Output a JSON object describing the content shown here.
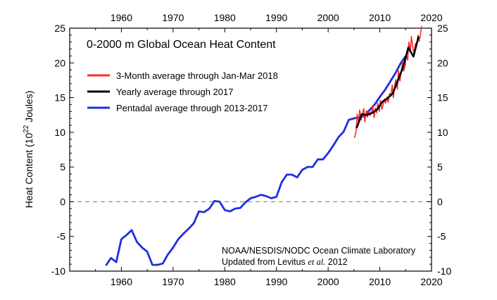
{
  "chart_data": {
    "type": "line",
    "title": "0-2000 m Global Ocean Heat Content",
    "xlabel": "",
    "ylabel_prefix": "Heat Content (10",
    "ylabel_exp": "22",
    "ylabel_suffix": " Joules)",
    "xlim": [
      1950,
      2020
    ],
    "ylim": [
      -10,
      25
    ],
    "x_ticks": [
      1960,
      1970,
      1980,
      1990,
      2000,
      2010,
      2020
    ],
    "y_ticks": [
      -10,
      -5,
      0,
      5,
      10,
      15,
      20,
      25
    ],
    "zero_line": true,
    "legend_position": "top-left",
    "credit_line1": "NOAA/NESDIS/NODC Ocean Climate Laboratory",
    "credit_line2_prefix": "Updated from Levitus ",
    "credit_line2_italic": "et al.",
    "credit_line2_suffix": " 2012",
    "series": [
      {
        "name": "3-Month average through Jan-Mar 2018",
        "color": "#ff2a2a",
        "x": [
          2005.1,
          2005.4,
          2005.6,
          2005.9,
          2006.1,
          2006.4,
          2006.6,
          2006.9,
          2007.1,
          2007.4,
          2007.6,
          2007.9,
          2008.1,
          2008.4,
          2008.6,
          2008.9,
          2009.1,
          2009.4,
          2009.6,
          2009.9,
          2010.1,
          2010.4,
          2010.6,
          2010.9,
          2011.1,
          2011.4,
          2011.6,
          2011.9,
          2012.1,
          2012.4,
          2012.6,
          2012.9,
          2013.1,
          2013.4,
          2013.6,
          2013.9,
          2014.1,
          2014.4,
          2014.6,
          2014.9,
          2015.1,
          2015.4,
          2015.6,
          2015.9,
          2016.1,
          2016.4,
          2016.6,
          2016.9,
          2017.1,
          2017.4,
          2017.6,
          2017.9,
          2018.1
        ],
        "values": [
          9.2,
          10.1,
          12.6,
          11.3,
          13.2,
          11.8,
          12.6,
          13.4,
          11.5,
          13.1,
          12.2,
          13.0,
          12.4,
          12.9,
          13.8,
          12.1,
          13.5,
          12.8,
          14.2,
          13.0,
          14.6,
          13.3,
          13.9,
          14.8,
          14.2,
          15.1,
          14.3,
          15.6,
          15.2,
          16.8,
          15.0,
          16.9,
          17.6,
          16.2,
          18.9,
          17.4,
          18.7,
          20.1,
          18.8,
          19.6,
          21.2,
          20.4,
          23.0,
          21.8,
          23.8,
          22.1,
          21.3,
          22.8,
          22.6,
          24.0,
          23.1,
          24.3,
          25.3
        ]
      },
      {
        "name": "Yearly average through 2017",
        "color": "#000000",
        "x": [
          2005.5,
          2006.5,
          2007.5,
          2008.5,
          2009.5,
          2010.5,
          2011.5,
          2012.5,
          2013.5,
          2014.5,
          2015.5,
          2016.5,
          2017.5
        ],
        "values": [
          10.6,
          12.6,
          12.5,
          12.8,
          13.3,
          14.4,
          14.9,
          15.6,
          17.5,
          19.4,
          22.2,
          20.9,
          23.8
        ]
      },
      {
        "name": "Pentadal average through 2013-2017",
        "color": "#1f2fe0",
        "x": [
          1957,
          1958,
          1959,
          1960,
          1961,
          1962,
          1963,
          1964,
          1965,
          1966,
          1967,
          1968,
          1969,
          1970,
          1971,
          1972,
          1973,
          1974,
          1975,
          1976,
          1977,
          1978,
          1979,
          1980,
          1981,
          1982,
          1983,
          1984,
          1985,
          1986,
          1987,
          1988,
          1989,
          1990,
          1991,
          1992,
          1993,
          1994,
          1995,
          1996,
          1997,
          1998,
          1999,
          2000,
          2001,
          2002,
          2003,
          2004,
          2005,
          2006,
          2007,
          2008,
          2009,
          2010,
          2011,
          2012,
          2013,
          2014,
          2015
        ],
        "values": [
          -9.2,
          -8.1,
          -8.7,
          -5.4,
          -4.8,
          -4.1,
          -5.8,
          -6.6,
          -7.2,
          -9.1,
          -9.1,
          -8.9,
          -7.6,
          -6.6,
          -5.4,
          -4.6,
          -3.9,
          -3.1,
          -1.4,
          -1.5,
          -1.0,
          0.1,
          0.0,
          -1.2,
          -1.4,
          -1.0,
          -0.9,
          -0.1,
          0.5,
          0.7,
          1.0,
          0.8,
          0.5,
          0.7,
          2.8,
          3.9,
          3.9,
          3.5,
          4.6,
          5.0,
          5.0,
          6.1,
          6.1,
          7.0,
          8.1,
          9.3,
          10.1,
          11.8,
          12.0,
          12.2,
          12.3,
          13.2,
          14.0,
          15.1,
          16.1,
          17.3,
          18.5,
          19.9,
          21.0
        ]
      }
    ]
  }
}
